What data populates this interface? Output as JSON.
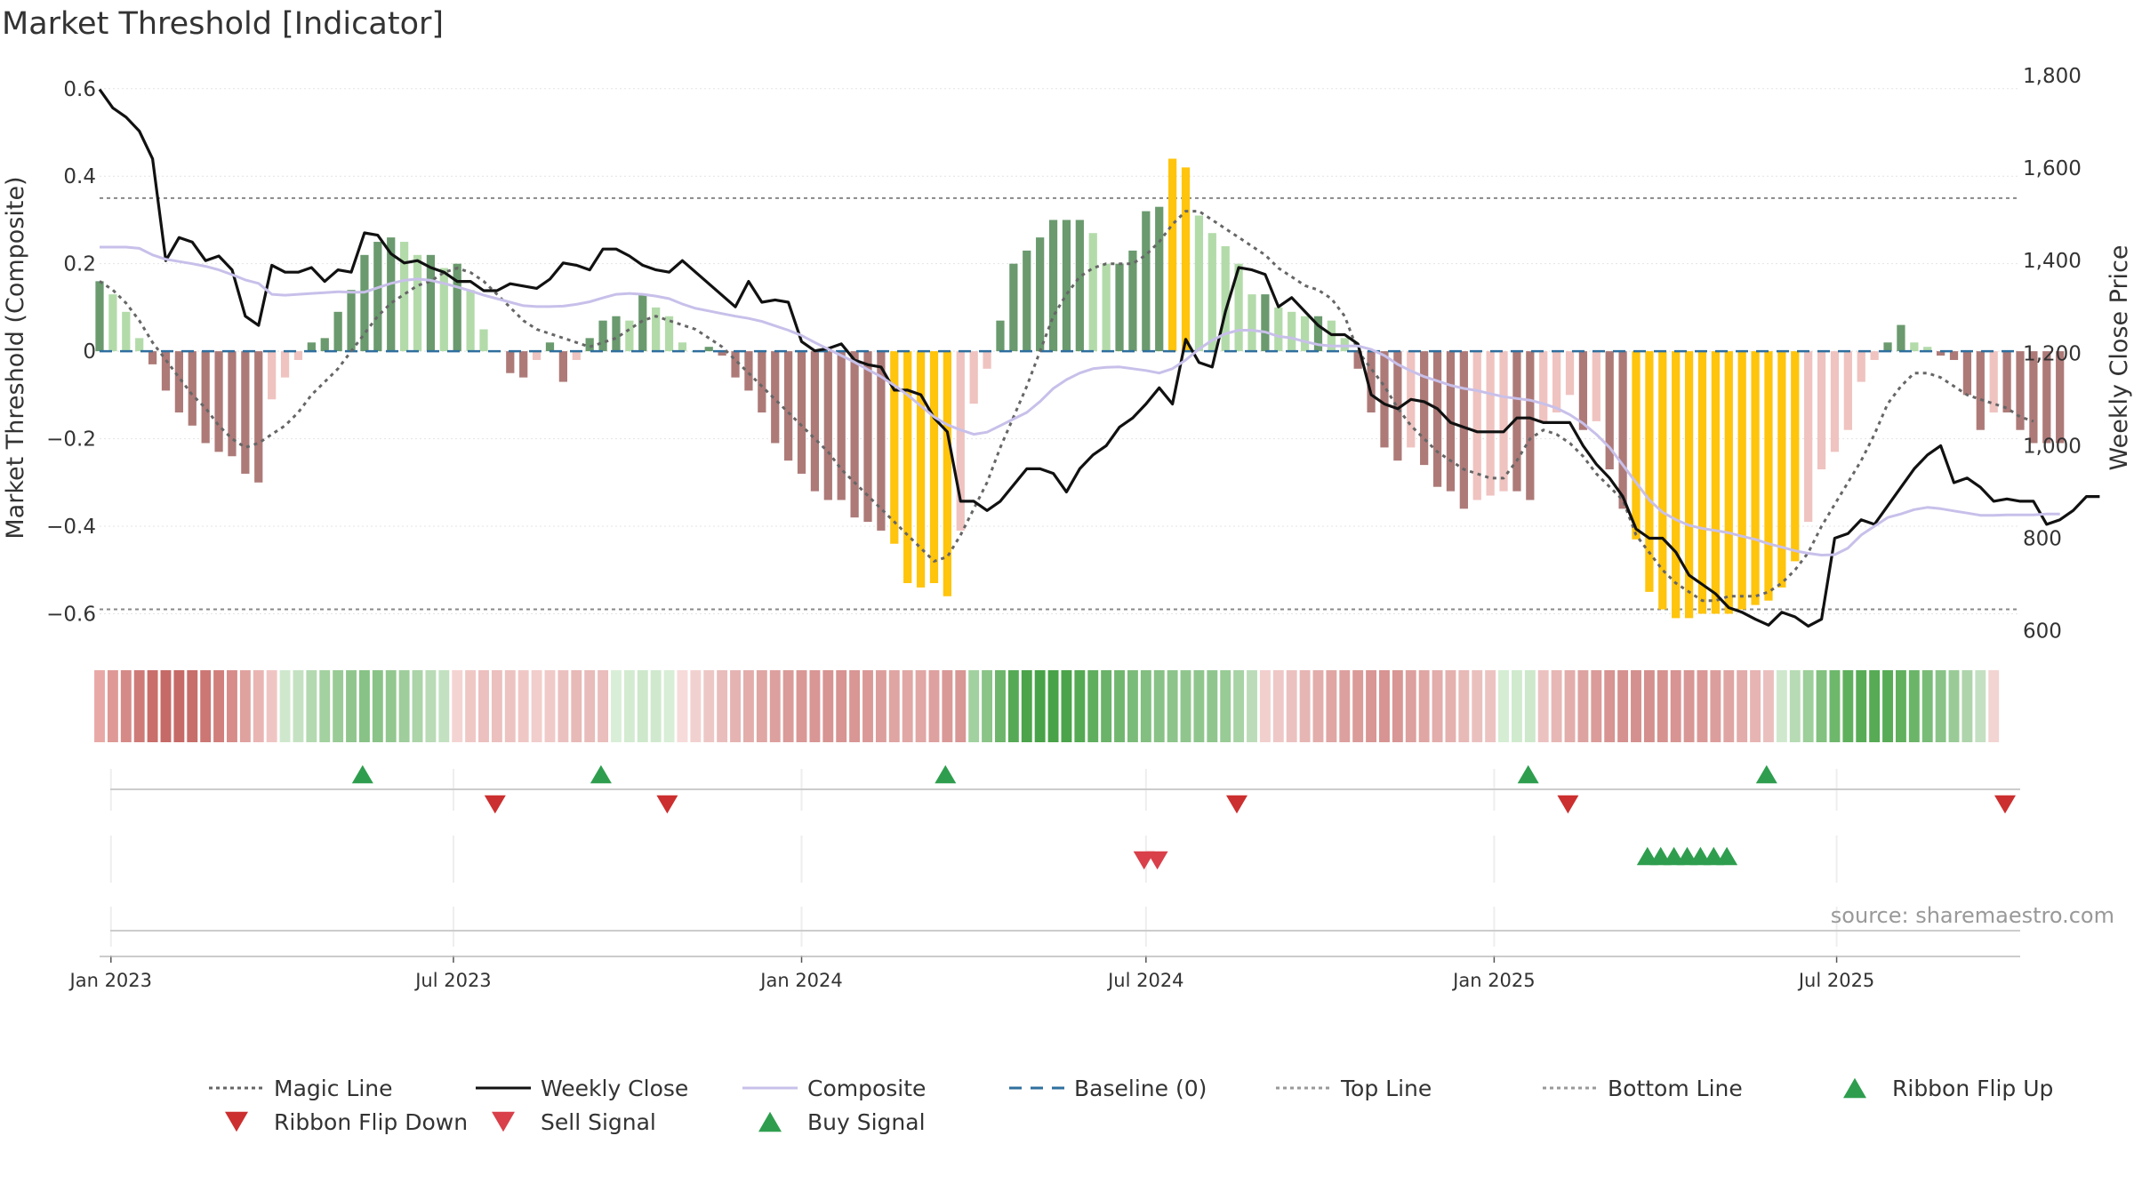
{
  "title": "Market Threshold [Indicator]",
  "source": "source: sharemaestro.com",
  "chart_data": {
    "type": "bar",
    "title": "Market Threshold [Indicator]",
    "ylabel": "Market Threshold (Composite)",
    "y2label": "Weekly Close Price",
    "ylim": [
      -0.66,
      0.63
    ],
    "y2lim": [
      580,
      1800
    ],
    "yticks": [
      "0.6",
      "0.4",
      "0.2",
      "0",
      "−0.2",
      "−0.4",
      "−0.6"
    ],
    "ytick_values": [
      0.6,
      0.4,
      0.2,
      0,
      -0.2,
      -0.4,
      -0.6
    ],
    "y2ticks": [
      "1,800",
      "1,600",
      "1,400",
      "1,200",
      "1,000",
      "800",
      "600"
    ],
    "y2tick_values": [
      1800,
      1600,
      1400,
      1200,
      1000,
      800,
      600
    ],
    "x_range": [
      "2022-12-26",
      "2025-10-06"
    ],
    "xticks": [
      {
        "date": "2023-01-01",
        "label": "Jan 2023"
      },
      {
        "date": "2023-07-01",
        "label": "Jul 2023"
      },
      {
        "date": "2024-01-01",
        "label": "Jan 2024"
      },
      {
        "date": "2024-07-01",
        "label": "Jul 2024"
      },
      {
        "date": "2025-01-01",
        "label": "Jan 2025"
      },
      {
        "date": "2025-07-01",
        "label": "Jul 2025"
      }
    ],
    "start_date": "2022-12-26",
    "top_line": 0.35,
    "bottom_line": -0.59,
    "grid": true,
    "legend_position": "bottom",
    "histogram": [
      0.16,
      0.13,
      0.09,
      0.03,
      -0.03,
      -0.09,
      -0.14,
      -0.17,
      -0.21,
      -0.23,
      -0.24,
      -0.28,
      -0.3,
      -0.11,
      -0.06,
      -0.02,
      0.02,
      0.03,
      0.09,
      0.14,
      0.22,
      0.25,
      0.26,
      0.25,
      0.22,
      0.22,
      0.19,
      0.2,
      0.14,
      0.05,
      0.0,
      -0.05,
      -0.06,
      -0.02,
      0.02,
      -0.07,
      -0.02,
      0.03,
      0.07,
      0.08,
      0.07,
      0.13,
      0.1,
      0.08,
      0.02,
      0.0,
      0.01,
      -0.01,
      -0.06,
      -0.09,
      -0.14,
      -0.21,
      -0.25,
      -0.28,
      -0.32,
      -0.34,
      -0.34,
      -0.38,
      -0.39,
      -0.41,
      -0.44,
      -0.53,
      -0.54,
      -0.53,
      -0.56,
      -0.41,
      -0.12,
      -0.04,
      0.07,
      0.2,
      0.23,
      0.26,
      0.3,
      0.3,
      0.3,
      0.27,
      0.2,
      0.2,
      0.23,
      0.32,
      0.33,
      0.44,
      0.42,
      0.31,
      0.27,
      0.24,
      0.2,
      0.13,
      0.13,
      0.1,
      0.09,
      0.08,
      0.08,
      0.07,
      0.03,
      -0.04,
      -0.14,
      -0.22,
      -0.25,
      -0.22,
      -0.26,
      -0.31,
      -0.32,
      -0.36,
      -0.34,
      -0.33,
      -0.32,
      -0.32,
      -0.34,
      -0.16,
      -0.14,
      -0.1,
      -0.18,
      -0.16,
      -0.27,
      -0.36,
      -0.43,
      -0.55,
      -0.59,
      -0.61,
      -0.61,
      -0.6,
      -0.6,
      -0.6,
      -0.59,
      -0.58,
      -0.57,
      -0.54,
      -0.48,
      -0.39,
      -0.27,
      -0.23,
      -0.18,
      -0.07,
      -0.02,
      0.02,
      0.06,
      0.02,
      0.01,
      -0.01,
      -0.02,
      -0.1,
      -0.18,
      -0.14,
      -0.14,
      -0.18,
      -0.21,
      -0.21,
      -0.21
    ],
    "hist_colors": {
      "dark_green": "#6a9a6e",
      "light_green": "#b3dbaa",
      "dark_red": "#ad7a78",
      "light_red": "#efc3c0",
      "extreme": "#ffc40c"
    },
    "series": [
      {
        "name": "Magic Line",
        "axis": "left",
        "color": "#666666",
        "values": [
          0.16,
          0.14,
          0.11,
          0.07,
          0.02,
          -0.02,
          -0.06,
          -0.1,
          -0.13,
          -0.17,
          -0.2,
          -0.22,
          -0.21,
          -0.19,
          -0.17,
          -0.14,
          -0.1,
          -0.07,
          -0.04,
          0.0,
          0.04,
          0.08,
          0.11,
          0.13,
          0.15,
          0.16,
          0.18,
          0.19,
          0.18,
          0.16,
          0.13,
          0.1,
          0.07,
          0.05,
          0.04,
          0.03,
          0.02,
          0.01,
          0.02,
          0.03,
          0.05,
          0.07,
          0.08,
          0.07,
          0.06,
          0.05,
          0.03,
          0.01,
          -0.02,
          -0.05,
          -0.08,
          -0.11,
          -0.14,
          -0.17,
          -0.2,
          -0.23,
          -0.27,
          -0.3,
          -0.33,
          -0.36,
          -0.39,
          -0.42,
          -0.45,
          -0.48,
          -0.47,
          -0.42,
          -0.36,
          -0.3,
          -0.22,
          -0.15,
          -0.08,
          0.0,
          0.08,
          0.13,
          0.17,
          0.19,
          0.2,
          0.2,
          0.2,
          0.22,
          0.25,
          0.29,
          0.32,
          0.32,
          0.3,
          0.28,
          0.26,
          0.24,
          0.22,
          0.19,
          0.17,
          0.15,
          0.14,
          0.12,
          0.08,
          0.0,
          -0.04,
          -0.08,
          -0.13,
          -0.17,
          -0.2,
          -0.23,
          -0.25,
          -0.27,
          -0.28,
          -0.29,
          -0.29,
          -0.25,
          -0.2,
          -0.18,
          -0.19,
          -0.21,
          -0.24,
          -0.28,
          -0.31,
          -0.34,
          -0.42,
          -0.46,
          -0.5,
          -0.53,
          -0.55,
          -0.57,
          -0.57,
          -0.56,
          -0.56,
          -0.56,
          -0.55,
          -0.53,
          -0.5,
          -0.46,
          -0.4,
          -0.35,
          -0.3,
          -0.25,
          -0.19,
          -0.12,
          -0.08,
          -0.05,
          -0.05,
          -0.06,
          -0.08,
          -0.1,
          -0.11,
          -0.12,
          -0.13,
          -0.15,
          -0.16
        ]
      },
      {
        "name": "Weekly Close",
        "axis": "right",
        "color": "#111111",
        "values": [
          1770,
          1730,
          1710,
          1680,
          1620,
          1400,
          1450,
          1440,
          1400,
          1410,
          1380,
          1280,
          1260,
          1390,
          1375,
          1375,
          1385,
          1355,
          1380,
          1375,
          1460,
          1455,
          1415,
          1395,
          1400,
          1385,
          1375,
          1355,
          1355,
          1335,
          1335,
          1350,
          1345,
          1340,
          1360,
          1395,
          1390,
          1380,
          1425,
          1425,
          1410,
          1390,
          1380,
          1375,
          1400,
          1375,
          1350,
          1325,
          1300,
          1355,
          1310,
          1315,
          1310,
          1225,
          1205,
          1210,
          1220,
          1185,
          1175,
          1170,
          1120,
          1120,
          1110,
          1060,
          1030,
          880,
          880,
          860,
          880,
          915,
          950,
          950,
          940,
          900,
          950,
          980,
          1000,
          1040,
          1060,
          1090,
          1125,
          1090,
          1230,
          1180,
          1170,
          1290,
          1385,
          1380,
          1370,
          1300,
          1320,
          1290,
          1260,
          1240,
          1240,
          1220,
          1110,
          1090,
          1080,
          1100,
          1095,
          1080,
          1050,
          1040,
          1030,
          1030,
          1030,
          1060,
          1060,
          1050,
          1050,
          1050,
          1000,
          960,
          930,
          890,
          820,
          800,
          800,
          770,
          720,
          700,
          680,
          650,
          640,
          625,
          612,
          640,
          630,
          610,
          625,
          800,
          810,
          840,
          830,
          870,
          910,
          950,
          980,
          1000,
          920,
          930,
          910,
          880,
          885,
          880,
          880,
          830,
          840,
          860,
          890,
          890
        ]
      },
      {
        "name": "Composite",
        "axis": "left",
        "color": "#c8c0ea",
        "values": [
          0.238,
          0.238,
          0.238,
          0.235,
          0.22,
          0.21,
          0.205,
          0.2,
          0.194,
          0.186,
          0.175,
          0.163,
          0.155,
          0.13,
          0.128,
          0.13,
          0.132,
          0.134,
          0.136,
          0.135,
          0.135,
          0.145,
          0.155,
          0.162,
          0.165,
          0.162,
          0.155,
          0.147,
          0.138,
          0.128,
          0.12,
          0.112,
          0.104,
          0.102,
          0.102,
          0.103,
          0.107,
          0.113,
          0.122,
          0.13,
          0.132,
          0.13,
          0.126,
          0.12,
          0.108,
          0.098,
          0.092,
          0.086,
          0.08,
          0.075,
          0.068,
          0.058,
          0.048,
          0.036,
          0.02,
          0.005,
          -0.01,
          -0.025,
          -0.042,
          -0.058,
          -0.078,
          -0.1,
          -0.125,
          -0.15,
          -0.168,
          -0.18,
          -0.19,
          -0.185,
          -0.17,
          -0.155,
          -0.14,
          -0.115,
          -0.085,
          -0.065,
          -0.05,
          -0.04,
          -0.037,
          -0.036,
          -0.04,
          -0.044,
          -0.05,
          -0.04,
          -0.02,
          0.005,
          0.025,
          0.04,
          0.048,
          0.048,
          0.044,
          0.034,
          0.03,
          0.022,
          0.015,
          0.012,
          0.012,
          0.012,
          0.004,
          -0.01,
          -0.03,
          -0.045,
          -0.058,
          -0.068,
          -0.078,
          -0.085,
          -0.09,
          -0.097,
          -0.104,
          -0.108,
          -0.112,
          -0.12,
          -0.13,
          -0.145,
          -0.165,
          -0.19,
          -0.22,
          -0.26,
          -0.3,
          -0.34,
          -0.368,
          -0.385,
          -0.398,
          -0.405,
          -0.41,
          -0.415,
          -0.423,
          -0.43,
          -0.44,
          -0.448,
          -0.456,
          -0.462,
          -0.466,
          -0.465,
          -0.45,
          -0.42,
          -0.4,
          -0.38,
          -0.372,
          -0.362,
          -0.357,
          -0.36,
          -0.365,
          -0.37,
          -0.375,
          -0.375,
          -0.374,
          -0.374,
          -0.374,
          -0.372,
          -0.372
        ]
      }
    ],
    "ribbon_colors": [
      "#e8a9a6",
      "#de9996",
      "#d68a87",
      "#ce7b78",
      "#c96e6b",
      "#c66a67",
      "#c66a67",
      "#c76d6a",
      "#cc7774",
      "#d17f7c",
      "#d78c89",
      "#e0a29f",
      "#e9b5b3",
      "#efc5c3",
      "#cfe8cd",
      "#c4e2c2",
      "#b3d9b0",
      "#a3d1a0",
      "#99cb96",
      "#90c68e",
      "#88c286",
      "#8ac387",
      "#93c790",
      "#9fcd9c",
      "#abd4a8",
      "#b9dbb6",
      "#c3e1c0",
      "#f4d4d3",
      "#efc8c6",
      "#ebc0be",
      "#ebc0be",
      "#ecc3c1",
      "#efc8c6",
      "#f1cdcb",
      "#efcac8",
      "#ebc1bf",
      "#e7b9b7",
      "#e8bcba",
      "#e9bebc",
      "#d9eed7",
      "#d3ebd1",
      "#cde8cb",
      "#d0e9ce",
      "#d8eed6",
      "#f6dbda",
      "#f1d1cf",
      "#edc7c5",
      "#e9bdbb",
      "#e5b4b2",
      "#e2adab",
      "#dfa6a4",
      "#dca09e",
      "#da9b99",
      "#d99896",
      "#d89694",
      "#d79492",
      "#d79492",
      "#d89694",
      "#da9997",
      "#dc9e9c",
      "#dfa5a3",
      "#e0a7a5",
      "#e0a7a5",
      "#dda19f",
      "#d99997",
      "#d89694",
      "#a2d1a0",
      "#8ac487",
      "#6cb56a",
      "#56aa55",
      "#4ba44a",
      "#48a247",
      "#48a247",
      "#4ba44a",
      "#54a953",
      "#5fae5e",
      "#6ab368",
      "#72b770",
      "#7bbb79",
      "#82bf80",
      "#88c286",
      "#8dc48b",
      "#90c68e",
      "#8fc68d",
      "#90c68e",
      "#99cb96",
      "#a8d3a5",
      "#bcdcb9",
      "#f1cfcd",
      "#eec8c6",
      "#ebc1bf",
      "#e6b6b4",
      "#e2adab",
      "#dfa6a4",
      "#dca09e",
      "#da9b99",
      "#d89694",
      "#d79492",
      "#d89694",
      "#dca09e",
      "#dfa6a4",
      "#e2adab",
      "#e4b1af",
      "#e7b9b7",
      "#eac0be",
      "#ecc3c1",
      "#d5edd3",
      "#d0eace",
      "#cde8cb",
      "#ecc2c0",
      "#e7b7b5",
      "#e2adab",
      "#dda3a1",
      "#da9b99",
      "#d79492",
      "#d59190",
      "#d4908e",
      "#d4908e",
      "#d5928f",
      "#d79492",
      "#d89694",
      "#da9997",
      "#dc9e9c",
      "#dfa5a3",
      "#e2acaa",
      "#e6b4b2",
      "#eac0be",
      "#cfe8cd",
      "#b7dbb4",
      "#9ccf99",
      "#82c17f",
      "#6eb86c",
      "#5fb05d",
      "#58ac56",
      "#56ab54",
      "#58ac56",
      "#60b05e",
      "#6bb569",
      "#79bc77",
      "#89c387",
      "#9acb97",
      "#aed4ab",
      "#c4e0c2",
      "#f2d4d2"
    ],
    "ribbon_markers": [
      {
        "date": "2023-05-14",
        "type": "flip_up"
      },
      {
        "date": "2023-07-23",
        "type": "flip_down"
      },
      {
        "date": "2023-09-17",
        "type": "flip_up"
      },
      {
        "date": "2023-10-22",
        "type": "flip_down"
      },
      {
        "date": "2024-03-17",
        "type": "flip_up"
      },
      {
        "date": "2024-08-18",
        "type": "flip_down"
      },
      {
        "date": "2025-01-19",
        "type": "flip_up"
      },
      {
        "date": "2025-02-09",
        "type": "flip_down"
      },
      {
        "date": "2025-05-25",
        "type": "flip_up"
      },
      {
        "date": "2025-09-28",
        "type": "flip_down"
      }
    ],
    "signal_markers": [
      {
        "date": "2024-06-30",
        "type": "sell"
      },
      {
        "date": "2024-07-07",
        "type": "sell"
      },
      {
        "date": "2025-03-23",
        "type": "buy"
      },
      {
        "date": "2025-03-30",
        "type": "buy"
      },
      {
        "date": "2025-04-06",
        "type": "buy"
      },
      {
        "date": "2025-04-13",
        "type": "buy"
      },
      {
        "date": "2025-04-20",
        "type": "buy"
      },
      {
        "date": "2025-04-27",
        "type": "buy"
      },
      {
        "date": "2025-05-04",
        "type": "buy"
      }
    ],
    "marker_colors": {
      "flip_up": "#2e9e4e",
      "flip_down": "#cc2f2f",
      "sell": "#d9404a",
      "buy": "#2e9e4e",
      "baseline": "#2f6f9e"
    }
  },
  "legend": [
    {
      "label": "Magic Line",
      "kind": "dotted",
      "color": "#666666"
    },
    {
      "label": "Weekly Close",
      "kind": "solid",
      "color": "#111111"
    },
    {
      "label": "Composite",
      "kind": "solid",
      "color": "#c8c0ea"
    },
    {
      "label": "Baseline (0)",
      "kind": "dashed",
      "color": "#2f6f9e"
    },
    {
      "label": "Top Line",
      "kind": "dotted",
      "color": "#999999"
    },
    {
      "label": "Bottom Line",
      "kind": "dotted",
      "color": "#999999"
    },
    {
      "label": "Ribbon Flip Up",
      "kind": "up",
      "color": "#2e9e4e"
    },
    {
      "label": "Ribbon Flip Down",
      "kind": "down",
      "color": "#cc2f2f"
    },
    {
      "label": "Sell Signal",
      "kind": "down",
      "color": "#d9404a"
    },
    {
      "label": "Buy Signal",
      "kind": "up",
      "color": "#2e9e4e"
    }
  ]
}
